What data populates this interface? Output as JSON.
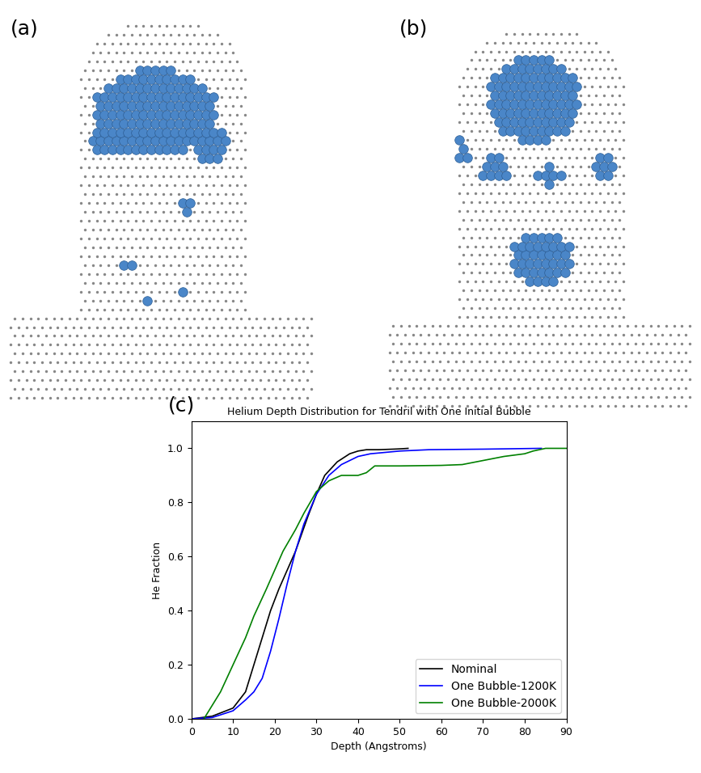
{
  "panel_labels": [
    "(a)",
    "(b)",
    "(c)"
  ],
  "chart_data": {
    "type": "line",
    "title": "Helium Depth Distribution for Tendril with One Initial Bubble",
    "x_label": "Depth (Angstroms)",
    "y_label": "He Fraction",
    "xlim": [
      0,
      90
    ],
    "ylim": [
      0.0,
      1.1
    ],
    "xticks": [
      0,
      10,
      20,
      30,
      40,
      50,
      60,
      70,
      80,
      90
    ],
    "yticks": [
      0.0,
      0.2,
      0.4,
      0.6,
      0.8,
      1.0
    ],
    "legend": "lower right",
    "series": [
      {
        "name": "Nominal",
        "color": "#000000",
        "x": [
          0,
          5,
          10,
          13,
          15,
          17,
          19,
          21,
          23,
          25,
          28,
          30,
          32,
          35,
          38,
          40,
          42,
          45,
          50,
          52
        ],
        "values": [
          0.0,
          0.01,
          0.04,
          0.1,
          0.2,
          0.3,
          0.4,
          0.48,
          0.55,
          0.62,
          0.75,
          0.83,
          0.9,
          0.95,
          0.98,
          0.99,
          0.995,
          0.995,
          0.998,
          1.0
        ]
      },
      {
        "name": "One Bubble-1200K",
        "color": "#0000ff",
        "x": [
          0,
          5,
          10,
          13,
          15,
          17,
          19,
          21,
          23,
          25,
          27,
          30,
          33,
          36,
          40,
          43,
          50,
          57,
          70,
          84
        ],
        "values": [
          0.0,
          0.005,
          0.03,
          0.07,
          0.1,
          0.15,
          0.25,
          0.37,
          0.5,
          0.62,
          0.72,
          0.83,
          0.9,
          0.94,
          0.97,
          0.98,
          0.99,
          0.995,
          0.997,
          1.0
        ]
      },
      {
        "name": "One Bubble-2000K",
        "color": "#008000",
        "x": [
          3,
          5,
          7,
          10,
          13,
          15,
          18,
          20,
          22,
          25,
          27,
          30,
          33,
          36,
          40,
          42,
          44,
          50,
          60,
          65,
          70,
          75,
          80,
          82,
          85,
          90
        ],
        "values": [
          0.0,
          0.05,
          0.1,
          0.2,
          0.3,
          0.38,
          0.48,
          0.55,
          0.62,
          0.7,
          0.76,
          0.84,
          0.88,
          0.9,
          0.9,
          0.91,
          0.935,
          0.935,
          0.937,
          0.94,
          0.955,
          0.97,
          0.98,
          0.99,
          1.0,
          1.0
        ]
      }
    ]
  }
}
